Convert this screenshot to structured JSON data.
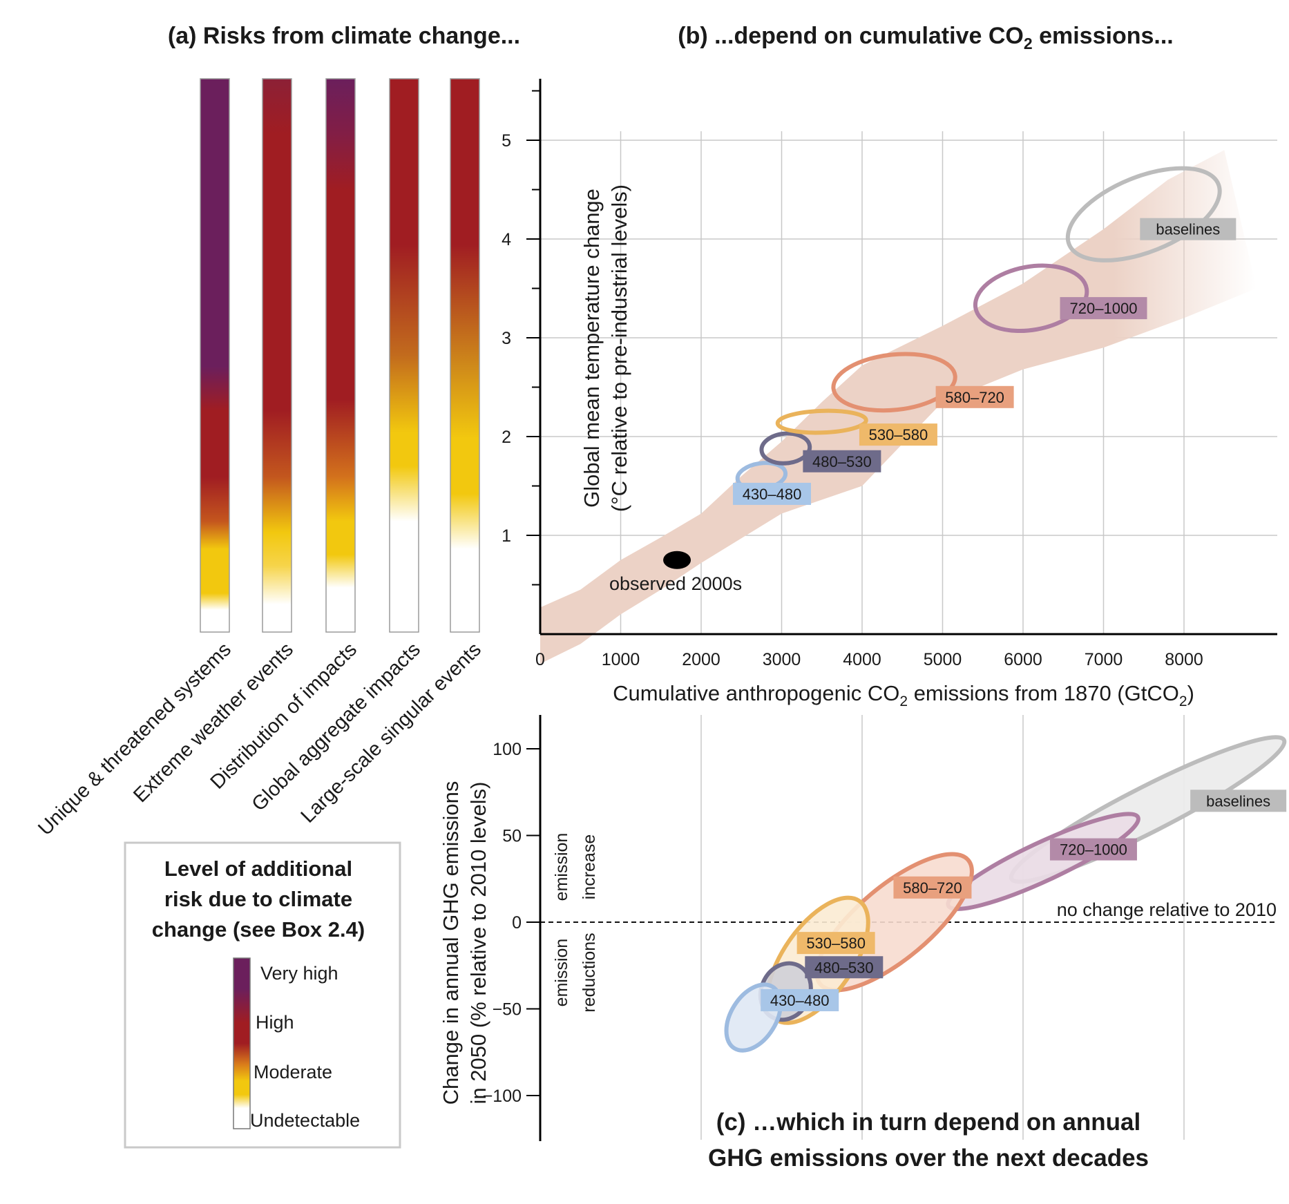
{
  "panel_a": {
    "title": "(a) Risks from climate change...",
    "categories": [
      {
        "label": "Unique & threatened systems",
        "level": "very-high"
      },
      {
        "label": "Extreme weather events",
        "level": "high"
      },
      {
        "label": "Distribution of impacts",
        "level": "very-high"
      },
      {
        "label": "Global aggregate impacts",
        "level": "high"
      },
      {
        "label": "Large-scale singular events",
        "level": "high"
      }
    ],
    "legend": {
      "title_lines": [
        "Level of additional",
        "risk due to climate",
        "change (see Box 2.4)"
      ],
      "levels": [
        "Very high",
        "High",
        "Moderate",
        "Undetectable"
      ],
      "colors": {
        "very_high": "#6b1f5c",
        "high": "#a01d22",
        "moderate": "#f2c80f",
        "undetectable": "#ffffff"
      }
    }
  },
  "panel_b": {
    "title_pre": "(b) ...depend on cumulative CO",
    "title_sub": "2",
    "title_post": " emissions...",
    "ylabel_line1": "Global mean temperature change",
    "ylabel_line2": "(°C relative to pre-industrial levels)",
    "xlabel_pre": "Cumulative anthropogenic CO",
    "xlabel_sub": "2",
    "xlabel_mid": " emissions from 1870 (GtCO",
    "xlabel_sub2": "2",
    "xlabel_post": ")",
    "observed_label": "observed 2000s"
  },
  "panel_c": {
    "title_line1": "(c) …which in turn depend on annual",
    "title_line2": "GHG emissions over the next decades",
    "ylabel_line1": "Change in annual GHG emissions",
    "ylabel_line2": "in 2050 (% relative to 2010 levels)",
    "increase_label": [
      "emission",
      "increase"
    ],
    "reductions_label": [
      "emission",
      "reductions"
    ],
    "no_change_label": "no change relative to 2010"
  },
  "chart_data": [
    {
      "type": "scatter",
      "panel": "b",
      "x_ticks": [
        0,
        1000,
        2000,
        3000,
        4000,
        5000,
        6000,
        7000,
        8000
      ],
      "y_ticks": [
        1,
        2,
        3,
        4,
        5
      ],
      "xlim": [
        0,
        9000
      ],
      "ylim": [
        0,
        5.6
      ],
      "grid": true,
      "observed": {
        "x": 1700,
        "y": 0.75,
        "color": "#000000"
      },
      "uncertainty_band_color": "#ecd2c6",
      "series": [
        {
          "name": "430–480",
          "cx": 2750,
          "cy": 1.6,
          "rx": 300,
          "ry": 0.13,
          "angle": -8,
          "color": "#9dbbe0",
          "label_color": "#a8c6e8"
        },
        {
          "name": "480–530",
          "cx": 3050,
          "cy": 1.88,
          "rx": 300,
          "ry": 0.15,
          "angle": -5,
          "color": "#6e6b8a",
          "label_color": "#6e6b8a"
        },
        {
          "name": "530–580",
          "cx": 3500,
          "cy": 2.15,
          "rx": 550,
          "ry": 0.11,
          "angle": -2,
          "color": "#eab35b",
          "label_color": "#efb96a"
        },
        {
          "name": "580–720",
          "cx": 4400,
          "cy": 2.55,
          "rx": 760,
          "ry": 0.28,
          "angle": -6,
          "color": "#e39071",
          "label_color": "#e8a07e"
        },
        {
          "name": "720–1000",
          "cx": 6100,
          "cy": 3.4,
          "rx": 700,
          "ry": 0.32,
          "angle": -10,
          "color": "#ae7ea2",
          "label_color": "#b38aa8"
        },
        {
          "name": "baselines",
          "cx": 7500,
          "cy": 4.25,
          "rx": 1000,
          "ry": 0.38,
          "angle": -22,
          "color": "#bcbcbc",
          "label_color": "#bcbcbc"
        }
      ]
    },
    {
      "type": "scatter",
      "panel": "c",
      "x_ticks": [],
      "y_ticks": [
        100,
        50,
        0,
        -50,
        -100
      ],
      "xlim": [
        0,
        9000
      ],
      "ylim": [
        -126,
        120
      ],
      "grid": true,
      "zero_line": "dashed",
      "series": [
        {
          "name": "430–480",
          "cx": 2650,
          "cy": -55,
          "rx": 450,
          "ry": 13,
          "angle": -58,
          "color": "#9dbbe0",
          "fill": "#dfe8f4"
        },
        {
          "name": "480–530",
          "cx": 3050,
          "cy": -40,
          "rx": 360,
          "ry": 14,
          "angle": -65,
          "color": "#6e6b8a",
          "fill": "#cfcfd8"
        },
        {
          "name": "530–580",
          "cx": 3450,
          "cy": -22,
          "rx": 900,
          "ry": 20,
          "angle": -55,
          "color": "#eab35b",
          "fill": "#fbebd3"
        },
        {
          "name": "580–720",
          "cx": 4400,
          "cy": 0,
          "rx": 1200,
          "ry": 21,
          "angle": -40,
          "color": "#e39071",
          "fill": "#f7dccf"
        },
        {
          "name": "720–1000",
          "cx": 6250,
          "cy": 35,
          "rx": 1300,
          "ry": 11,
          "angle": -25,
          "color": "#ae7ea2",
          "fill": "#eadbe6"
        },
        {
          "name": "baselines",
          "cx": 7550,
          "cy": 65,
          "rx": 1900,
          "ry": 13,
          "angle": -27,
          "color": "#bcbcbc",
          "fill": "#ebebeb"
        }
      ]
    }
  ]
}
